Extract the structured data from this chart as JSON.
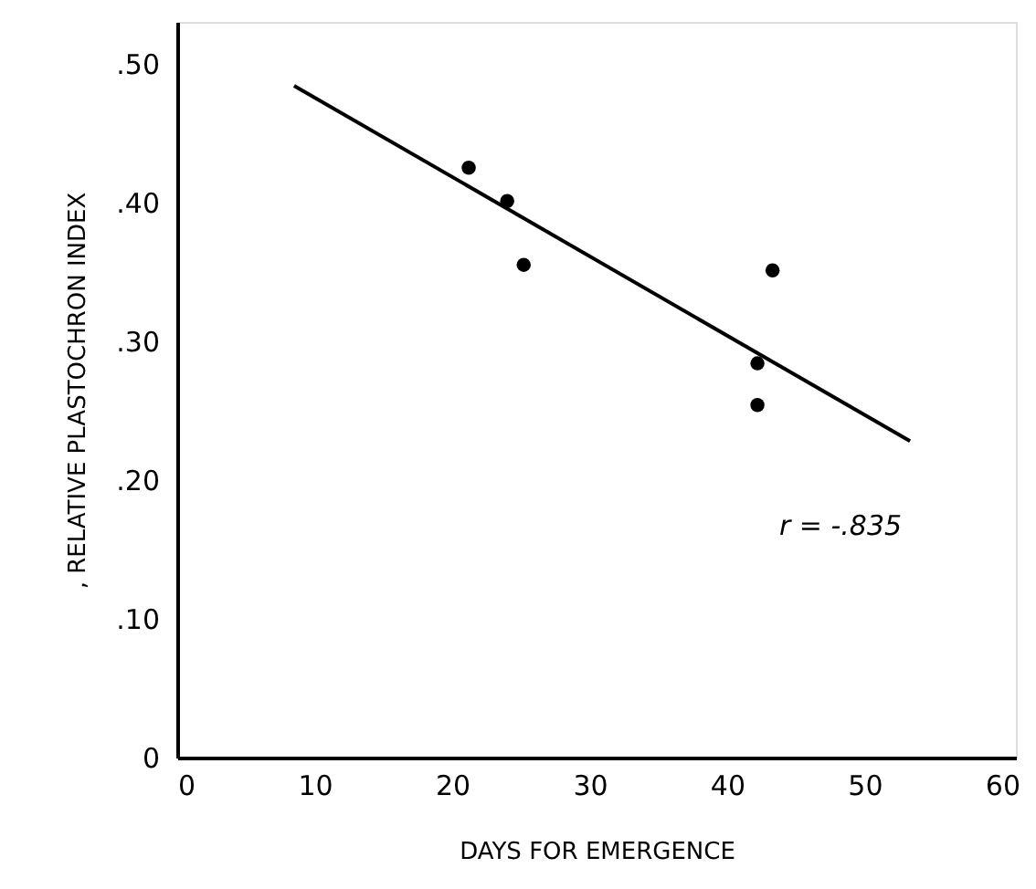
{
  "chart_data": {
    "type": "scatter",
    "xlabel": "DAYS FOR EMERGENCE",
    "ylabel": ", RELATIVE PLASTOCHRON INDEX",
    "xlim": [
      0,
      61
    ],
    "ylim": [
      0,
      0.53
    ],
    "xticks": [
      0,
      10,
      20,
      30,
      40,
      50,
      60
    ],
    "yticks": [
      {
        "value": 0,
        "label": "0"
      },
      {
        "value": 0.1,
        "label": ".10"
      },
      {
        "value": 0.2,
        "label": ".20"
      },
      {
        "value": 0.3,
        "label": ".30"
      },
      {
        "value": 0.4,
        "label": ".40"
      },
      {
        "value": 0.5,
        "label": ".50"
      }
    ],
    "grid": false,
    "marker": "circle",
    "series": [
      {
        "color": "#000000",
        "x": [
          21.2,
          24.0,
          25.2,
          43.3,
          42.2,
          42.2
        ],
        "values": [
          0.425,
          0.401,
          0.355,
          0.351,
          0.284,
          0.254
        ]
      },
      {
        "type": "line",
        "color": "#000000",
        "marker": "none",
        "x": [
          8.5,
          53.3
        ],
        "values": [
          0.484,
          0.228
        ]
      }
    ],
    "annotations": [
      "r = -.835"
    ]
  }
}
